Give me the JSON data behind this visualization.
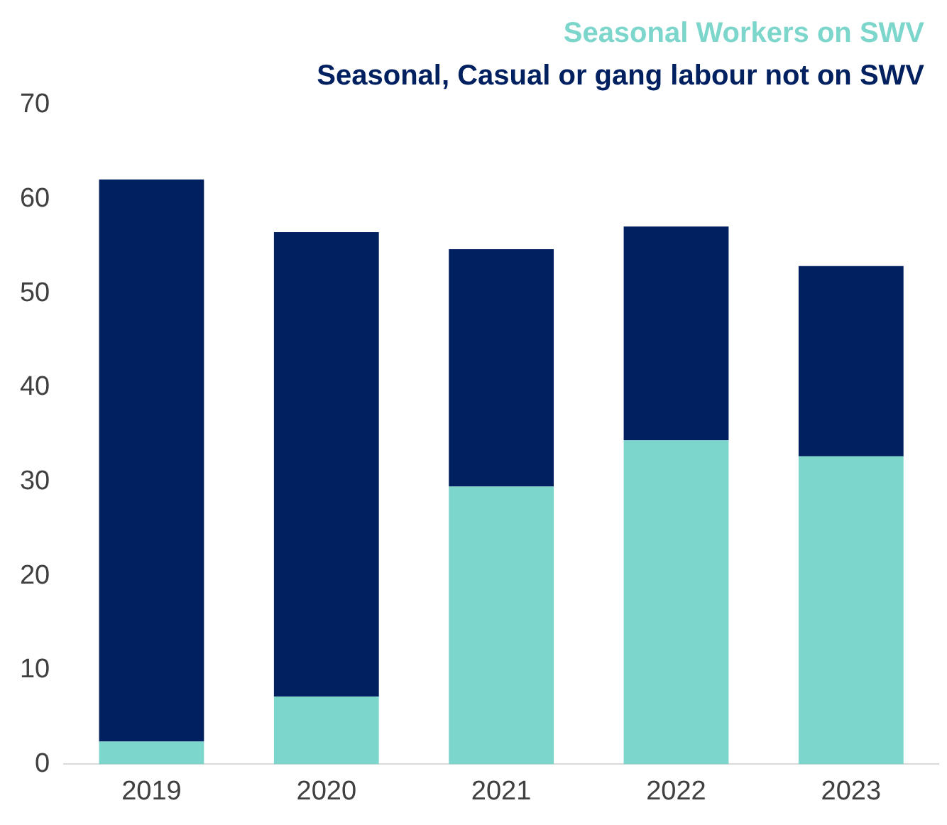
{
  "chart_data": {
    "type": "bar",
    "stacked": true,
    "categories": [
      "2019",
      "2020",
      "2021",
      "2022",
      "2023"
    ],
    "series": [
      {
        "name": "Seasonal Workers on SWV",
        "color": "#7dd6cc",
        "values": [
          2.4,
          7.2,
          29.5,
          34.4,
          32.7
        ]
      },
      {
        "name": "Seasonal, Casual or gang labour not on SWV",
        "color": "#002060",
        "values": [
          59.7,
          49.3,
          25.2,
          22.7,
          20.2
        ]
      }
    ],
    "ylim": [
      0,
      70
    ],
    "yticks": [
      0,
      10,
      20,
      30,
      40,
      50,
      60,
      70
    ],
    "grid": false,
    "legend": "top right"
  }
}
